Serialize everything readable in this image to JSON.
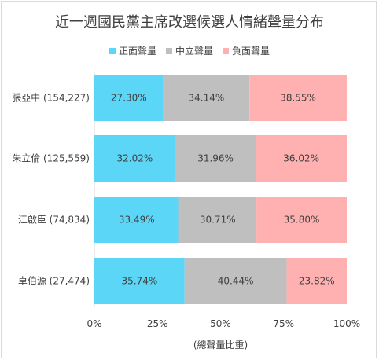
{
  "chart_data": {
    "type": "bar",
    "orientation": "horizontal",
    "stacked": true,
    "title": "近一週國民黨主席改選候選人情緒聲量分布",
    "xlabel": "(總聲量比重)",
    "xlim": [
      0,
      100
    ],
    "xticks": [
      "0%",
      "25%",
      "50%",
      "75%",
      "100%"
    ],
    "legend_position": "top",
    "categories": [
      "張亞中 (154,227)",
      "朱立倫 (125,559)",
      "江啟臣 (74,834)",
      "卓伯源 (27,474)"
    ],
    "series": [
      {
        "name": "正面聲量",
        "color": "#5bd6f7",
        "values": [
          27.3,
          32.02,
          33.49,
          35.74
        ],
        "labels": [
          "27.30%",
          "32.02%",
          "33.49%",
          "35.74%"
        ]
      },
      {
        "name": "中立聲量",
        "color": "#bfbfbf",
        "values": [
          34.14,
          31.96,
          30.71,
          40.44
        ],
        "labels": [
          "34.14%",
          "31.96%",
          "30.71%",
          "40.44%"
        ]
      },
      {
        "name": "負面聲量",
        "color": "#ffb1b1",
        "values": [
          38.55,
          36.02,
          35.8,
          23.82
        ],
        "labels": [
          "38.55%",
          "36.02%",
          "35.80%",
          "23.82%"
        ]
      }
    ]
  }
}
